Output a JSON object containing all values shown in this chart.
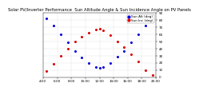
{
  "title": "Solar PV/Inverter Performance  Sun Altitude Angle & Sun Incidence Angle on PV Panels",
  "background_color": "#ffffff",
  "grid_color": "#aaaaaa",
  "blue_x": [
    4.5,
    5.5,
    6.5,
    7.5,
    8.5,
    9.5,
    10.5,
    11.5,
    12.0,
    12.5,
    13.5,
    14.5,
    15.5,
    16.5,
    17.5,
    18.5,
    19.5
  ],
  "blue_y": [
    82,
    72,
    60,
    48,
    36,
    27,
    19,
    14,
    13,
    14,
    20,
    28,
    36,
    48,
    60,
    72,
    80
  ],
  "red_x": [
    4.5,
    5.5,
    6.5,
    7.5,
    8.5,
    9.5,
    10.5,
    11.5,
    12.0,
    12.5,
    13.5,
    14.5,
    15.5,
    16.5,
    17.5,
    18.5,
    19.5
  ],
  "red_y": [
    8,
    18,
    30,
    40,
    50,
    56,
    62,
    66,
    67,
    65,
    58,
    50,
    42,
    32,
    22,
    10,
    3
  ],
  "xlim": [
    4,
    20
  ],
  "ylim": [
    0,
    90
  ],
  "yticks": [
    0,
    10,
    20,
    30,
    40,
    50,
    60,
    70,
    80,
    90
  ],
  "ytick_labels": [
    "0",
    "10",
    "20",
    "30",
    "40",
    "50",
    "60",
    "70",
    "80",
    "90"
  ],
  "xtick_positions": [
    4,
    6,
    8,
    10,
    12,
    14,
    16,
    18,
    20
  ],
  "xtick_labels": [
    "4:00",
    "6:00",
    "8:00",
    "10:00",
    "12:00",
    "14:00",
    "16:00",
    "18:00",
    "20:00"
  ],
  "title_fontsize": 3.8,
  "tick_fontsize": 3.0,
  "legend_fontsize": 3.0,
  "dot_size": 1.5,
  "legend_labels": [
    "Sun Alt (deg)",
    "Sun Inc (deg)"
  ],
  "legend_colors": [
    "#0000dd",
    "#dd0000"
  ]
}
